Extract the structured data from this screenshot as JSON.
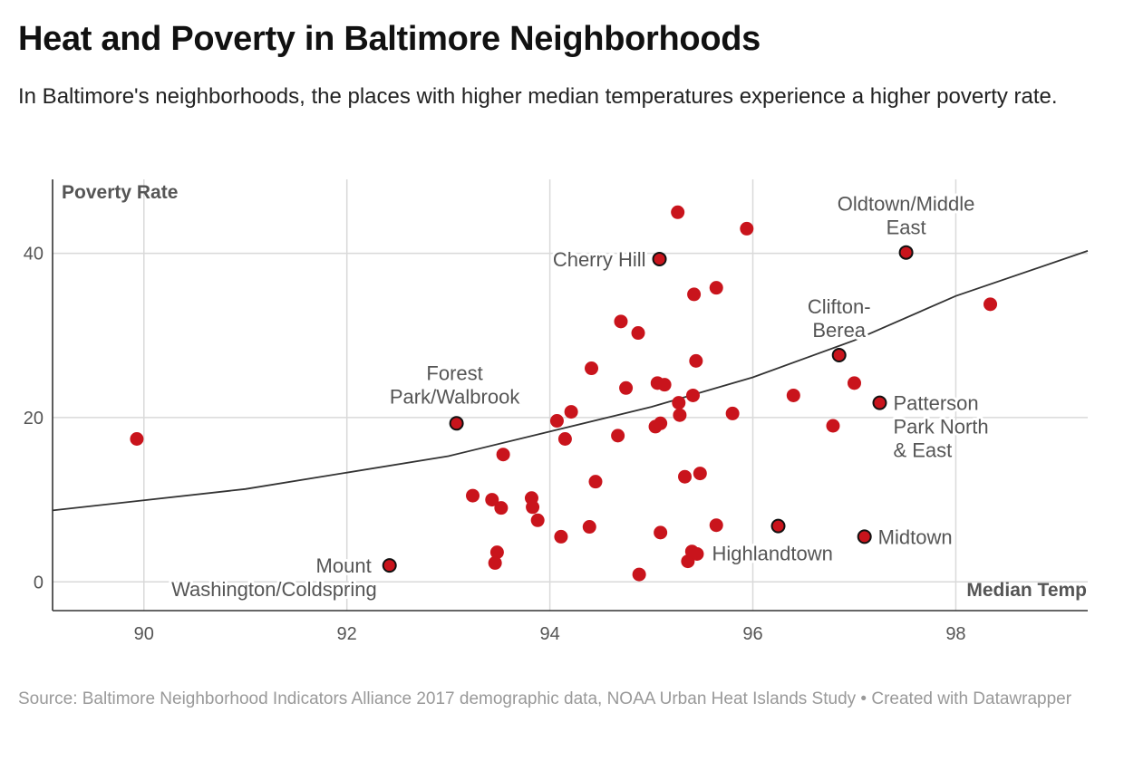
{
  "header": {
    "title": "Heat and Poverty in Baltimore Neighborhoods",
    "subtitle": "In Baltimore's neighborhoods, the places with higher median temperatures experience a higher poverty rate."
  },
  "footer": {
    "source": "Source: Baltimore Neighborhood Indicators Alliance 2017 demographic data, NOAA Urban Heat Islands Study • Created with Datawrapper"
  },
  "chart_data": {
    "type": "scatter",
    "xlabel": "Median Temp",
    "ylabel": "Poverty Rate",
    "xlim": [
      89.1,
      99.3
    ],
    "ylim": [
      -3.5,
      49
    ],
    "x_ticks": [
      90,
      92,
      94,
      96,
      98
    ],
    "y_ticks": [
      0,
      20,
      40
    ],
    "grid": true,
    "point_color": "#c9141c",
    "trendline": {
      "type": "exponential",
      "points": [
        [
          89.1,
          8.7
        ],
        [
          91,
          11.3
        ],
        [
          93,
          15.3
        ],
        [
          95,
          21.3
        ],
        [
          96,
          24.9
        ],
        [
          97,
          29.4
        ],
        [
          98,
          34.8
        ],
        [
          99.3,
          40.3
        ]
      ]
    },
    "points": [
      {
        "x": 89.93,
        "y": 17.4
      },
      {
        "x": 92.42,
        "y": 2.0,
        "label": "Mount\nWashington/Coldspring"
      },
      {
        "x": 93.08,
        "y": 19.3,
        "label": "Forest\nPark/Walbrook"
      },
      {
        "x": 93.24,
        "y": 10.5
      },
      {
        "x": 93.43,
        "y": 10.0
      },
      {
        "x": 93.46,
        "y": 2.3
      },
      {
        "x": 93.48,
        "y": 3.6
      },
      {
        "x": 93.52,
        "y": 9.0
      },
      {
        "x": 93.54,
        "y": 15.5
      },
      {
        "x": 93.82,
        "y": 10.2
      },
      {
        "x": 93.83,
        "y": 9.1
      },
      {
        "x": 93.88,
        "y": 7.5
      },
      {
        "x": 94.07,
        "y": 19.6
      },
      {
        "x": 94.11,
        "y": 5.5
      },
      {
        "x": 94.15,
        "y": 17.4
      },
      {
        "x": 94.21,
        "y": 20.7
      },
      {
        "x": 94.39,
        "y": 6.7
      },
      {
        "x": 94.41,
        "y": 26.0
      },
      {
        "x": 94.45,
        "y": 12.2
      },
      {
        "x": 94.67,
        "y": 17.8
      },
      {
        "x": 94.7,
        "y": 31.7
      },
      {
        "x": 94.75,
        "y": 23.6
      },
      {
        "x": 94.87,
        "y": 30.3
      },
      {
        "x": 94.88,
        "y": 0.9
      },
      {
        "x": 95.04,
        "y": 18.9
      },
      {
        "x": 95.06,
        "y": 24.2
      },
      {
        "x": 95.08,
        "y": 39.3,
        "label": "Cherry Hill"
      },
      {
        "x": 95.09,
        "y": 19.3
      },
      {
        "x": 95.09,
        "y": 6.0
      },
      {
        "x": 95.13,
        "y": 24.0
      },
      {
        "x": 95.26,
        "y": 45.0
      },
      {
        "x": 95.27,
        "y": 21.8
      },
      {
        "x": 95.28,
        "y": 20.3
      },
      {
        "x": 95.33,
        "y": 12.8
      },
      {
        "x": 95.36,
        "y": 2.5
      },
      {
        "x": 95.4,
        "y": 3.7
      },
      {
        "x": 95.41,
        "y": 22.7
      },
      {
        "x": 95.42,
        "y": 35.0
      },
      {
        "x": 95.44,
        "y": 26.9
      },
      {
        "x": 95.45,
        "y": 3.4
      },
      {
        "x": 95.48,
        "y": 13.2
      },
      {
        "x": 95.64,
        "y": 35.8
      },
      {
        "x": 95.64,
        "y": 6.9
      },
      {
        "x": 95.8,
        "y": 20.5
      },
      {
        "x": 95.94,
        "y": 43.0
      },
      {
        "x": 96.25,
        "y": 6.8,
        "label": "Highlandtown"
      },
      {
        "x": 96.4,
        "y": 22.7
      },
      {
        "x": 96.79,
        "y": 19.0
      },
      {
        "x": 96.85,
        "y": 27.6,
        "label": "Clifton-\nBerea"
      },
      {
        "x": 97.0,
        "y": 24.2
      },
      {
        "x": 97.1,
        "y": 5.5,
        "label": "Midtown"
      },
      {
        "x": 97.25,
        "y": 21.8,
        "label": "Patterson\nPark North\n& East"
      },
      {
        "x": 97.51,
        "y": 40.1,
        "label": "Oldtown/Middle\nEast"
      },
      {
        "x": 98.34,
        "y": 33.8
      }
    ]
  }
}
